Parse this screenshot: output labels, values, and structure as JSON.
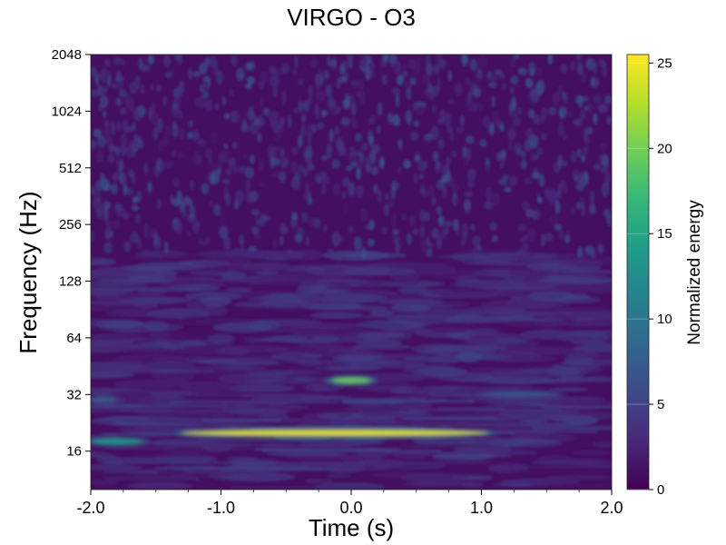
{
  "chart_data": {
    "type": "heatmap",
    "title": "VIRGO - O3",
    "xlabel": "Time (s)",
    "ylabel": "Frequency (Hz)",
    "xlim": [
      -2.0,
      2.0
    ],
    "ylim": [
      10,
      2048
    ],
    "yscale": "log2",
    "x_ticks": [
      -2.0,
      -1.0,
      0.0,
      1.0,
      2.0
    ],
    "x_tick_labels": [
      "-2.0",
      "-1.0",
      "0.0",
      "1.0",
      "2.0"
    ],
    "y_ticks": [
      16,
      32,
      64,
      128,
      256,
      512,
      1024,
      2048
    ],
    "y_tick_labels": [
      "16",
      "32",
      "64",
      "128",
      "256",
      "512",
      "1024",
      "2048"
    ],
    "colorbar": {
      "label": "Normalized energy",
      "range": [
        0,
        25.5
      ],
      "ticks": [
        0,
        5,
        10,
        15,
        20,
        25
      ],
      "tick_labels": [
        "0",
        "5",
        "10",
        "15",
        "20",
        "25"
      ],
      "colormap": "viridis",
      "colors": [
        "#440154",
        "#482878",
        "#3e4989",
        "#31688e",
        "#26828e",
        "#1f9e89",
        "#35b779",
        "#6ece58",
        "#b5de2b",
        "#fde725"
      ]
    },
    "background_level": 1.0,
    "features": [
      {
        "label": "",
        "t_start": -1.3,
        "t_end": 1.05,
        "frequency": 20,
        "peak_energy": 25
      },
      {
        "label": "",
        "t_start": -2.0,
        "t_end": -1.6,
        "frequency": 18,
        "peak_energy": 14
      },
      {
        "label": "",
        "t_start": -0.15,
        "t_end": 0.15,
        "frequency": 38,
        "peak_energy": 20
      },
      {
        "label": "",
        "t_start": -2.0,
        "t_end": -1.8,
        "frequency": 30,
        "peak_energy": 8
      },
      {
        "label": "",
        "t_start": 1.0,
        "t_end": 1.6,
        "frequency": 32,
        "peak_energy": 7
      }
    ],
    "grid": false
  }
}
